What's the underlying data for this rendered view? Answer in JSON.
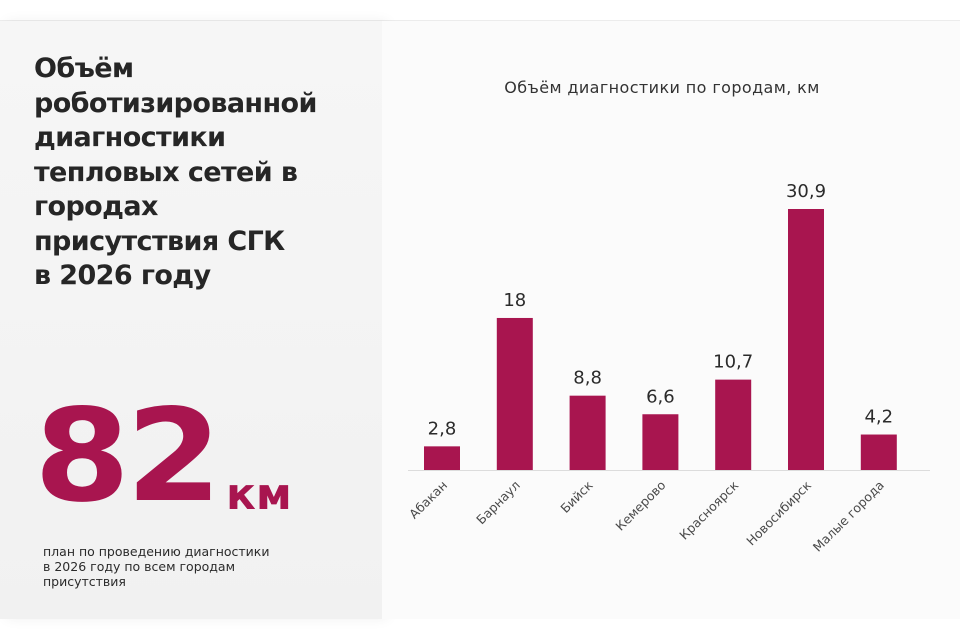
{
  "headline": "Объём\nроботизированной\nдиагностики\nтепловых сетей в\nгородах\nприсутствия СГК\nв 2026 году",
  "big_number": "82",
  "big_unit": "км",
  "note": "план по проведению диагностики\nв 2026 году по всем городам\nприсутствия",
  "colors": {
    "accent": "#a8154f",
    "text": "#2b2b2b"
  },
  "chart_data": {
    "type": "bar",
    "title": "Объём диагностики по городам, км",
    "categories": [
      "Абакан",
      "Барнаул",
      "Бийск",
      "Кемерово",
      "Красноярск",
      "Новосибирск",
      "Малые города"
    ],
    "values": [
      2.8,
      18,
      8.8,
      6.6,
      10.7,
      30.9,
      4.2
    ],
    "value_labels": [
      "2,8",
      "18",
      "8,8",
      "6,6",
      "10,7",
      "30,9",
      "4,2"
    ],
    "ylim": [
      0,
      30.9
    ],
    "grid": false,
    "legend": "none"
  }
}
